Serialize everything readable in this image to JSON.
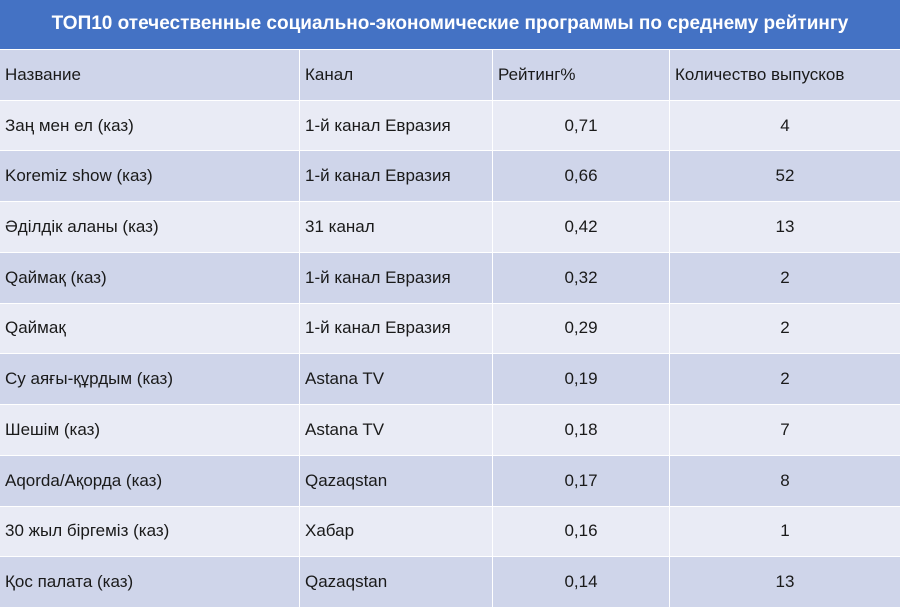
{
  "title": "ТОП10 отечественные социально-экономические программы по среднему рейтингу",
  "columns": {
    "name": "Название",
    "channel": "Канал",
    "rating": "Рейтинг%",
    "episodes": "Количество выпусков"
  },
  "rows": [
    {
      "name": "Заң мен ел (каз)",
      "channel": "1-й канал Евразия",
      "rating": "0,71",
      "episodes": "4"
    },
    {
      "name": "Koremiz show (каз)",
      "channel": "1-й канал Евразия",
      "rating": "0,66",
      "episodes": "52"
    },
    {
      "name": "Әділдік аланы (каз)",
      "channel": "31 канал",
      "rating": "0,42",
      "episodes": "13"
    },
    {
      "name": "Qаймақ (каз)",
      "channel": "1-й канал Евразия",
      "rating": "0,32",
      "episodes": "2"
    },
    {
      "name": "Qаймақ",
      "channel": "1-й канал Евразия",
      "rating": "0,29",
      "episodes": "2"
    },
    {
      "name": "Су аяғы-құрдым (каз)",
      "channel": "Astana TV",
      "rating": "0,19",
      "episodes": "2"
    },
    {
      "name": "Шешім (каз)",
      "channel": "Astana TV",
      "rating": "0,18",
      "episodes": "7"
    },
    {
      "name": "Aqorda/Ақорда (каз)",
      "channel": "Qazaqstan",
      "rating": "0,17",
      "episodes": "8"
    },
    {
      "name": "30 жыл біргеміз (каз)",
      "channel": "Хабар",
      "rating": "0,16",
      "episodes": "1"
    },
    {
      "name": "Қос палата (каз)",
      "channel": "Qazaqstan",
      "rating": "0,14",
      "episodes": "13"
    }
  ],
  "colors": {
    "title_bg": "#4472c4",
    "row_dark": "#cfd5ea",
    "row_light": "#e9ebf5"
  }
}
